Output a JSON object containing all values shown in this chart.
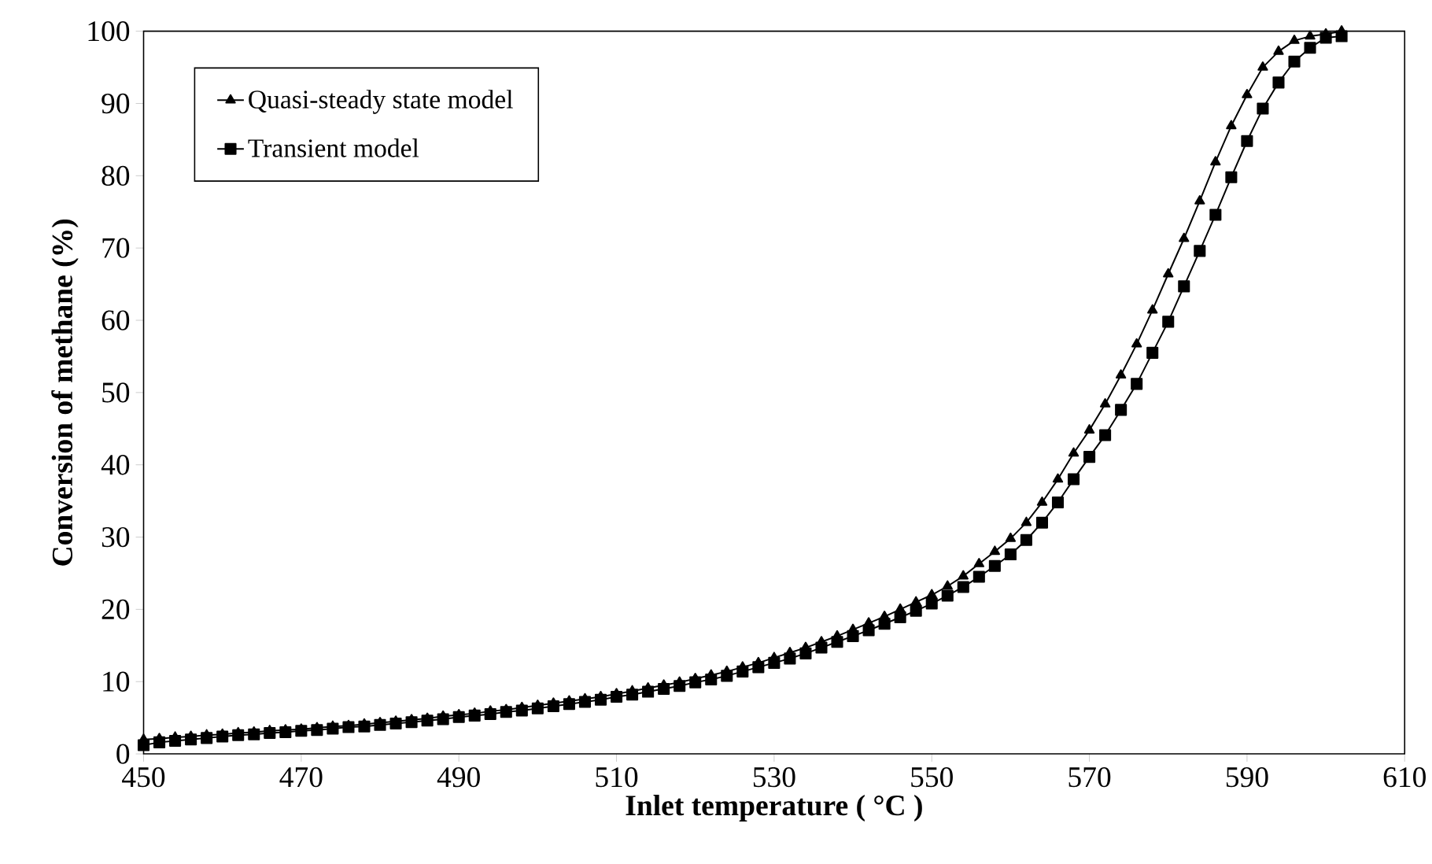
{
  "chart_data": {
    "type": "line",
    "xlabel": "Inlet temperature ( °C )",
    "ylabel": "Conversion of methane (%)",
    "x": [
      450,
      452,
      454,
      456,
      458,
      460,
      462,
      464,
      466,
      468,
      470,
      472,
      474,
      476,
      478,
      480,
      482,
      484,
      486,
      488,
      490,
      492,
      494,
      496,
      498,
      500,
      502,
      504,
      506,
      508,
      510,
      512,
      514,
      516,
      518,
      520,
      522,
      524,
      526,
      528,
      530,
      532,
      534,
      536,
      538,
      540,
      542,
      544,
      546,
      548,
      550,
      552,
      554,
      556,
      558,
      560,
      562,
      564,
      566,
      568,
      570,
      572,
      574,
      576,
      578,
      580,
      582,
      584,
      586,
      588,
      590,
      592,
      594,
      596,
      598,
      600,
      602
    ],
    "series": [
      {
        "name": "Quasi-steady state model",
        "color": "#000000",
        "marker": "triangle",
        "values": [
          2.0,
          2.1,
          2.3,
          2.4,
          2.6,
          2.7,
          2.9,
          3.0,
          3.2,
          3.3,
          3.4,
          3.6,
          3.8,
          3.9,
          4.1,
          4.3,
          4.5,
          4.7,
          4.9,
          5.2,
          5.4,
          5.6,
          5.9,
          6.1,
          6.4,
          6.7,
          7.0,
          7.3,
          7.6,
          7.9,
          8.3,
          8.7,
          9.1,
          9.5,
          9.9,
          10.4,
          10.9,
          11.4,
          12.0,
          12.6,
          13.3,
          14.0,
          14.7,
          15.5,
          16.3,
          17.2,
          18.1,
          19.0,
          20.0,
          21.0,
          22.0,
          23.2,
          24.6,
          26.3,
          28.0,
          29.8,
          32.0,
          34.8,
          38.0,
          41.6,
          44.8,
          48.4,
          52.4,
          56.7,
          61.4,
          66.4,
          71.3,
          76.5,
          81.9,
          86.9,
          91.2,
          95.0,
          97.2,
          98.7,
          99.3,
          99.6,
          100
        ]
      },
      {
        "name": "Transient model",
        "color": "#000000",
        "marker": "square",
        "values": [
          1.2,
          1.6,
          1.8,
          2.0,
          2.2,
          2.4,
          2.6,
          2.7,
          2.9,
          3.0,
          3.2,
          3.3,
          3.5,
          3.7,
          3.8,
          4.0,
          4.2,
          4.4,
          4.6,
          4.8,
          5.1,
          5.3,
          5.5,
          5.8,
          6.0,
          6.3,
          6.6,
          6.9,
          7.2,
          7.5,
          7.9,
          8.2,
          8.6,
          9.0,
          9.4,
          9.9,
          10.3,
          10.8,
          11.4,
          12.0,
          12.6,
          13.2,
          13.9,
          14.7,
          15.5,
          16.3,
          17.1,
          18.0,
          18.9,
          19.8,
          20.8,
          21.9,
          23.1,
          24.5,
          26.0,
          27.6,
          29.6,
          32.0,
          34.8,
          38.0,
          41.1,
          44.1,
          47.6,
          51.2,
          55.5,
          59.8,
          64.7,
          69.6,
          74.6,
          79.8,
          84.8,
          89.3,
          92.9,
          95.8,
          97.7,
          99.1,
          99.3
        ]
      }
    ],
    "xlim": [
      450,
      610
    ],
    "xticks": [
      450,
      470,
      490,
      510,
      530,
      550,
      570,
      590,
      610
    ],
    "ylim": [
      0,
      100
    ],
    "yticks": [
      0,
      10,
      20,
      30,
      40,
      50,
      60,
      70,
      80,
      90,
      100
    ],
    "legend": "top left",
    "line_style": "solid"
  }
}
